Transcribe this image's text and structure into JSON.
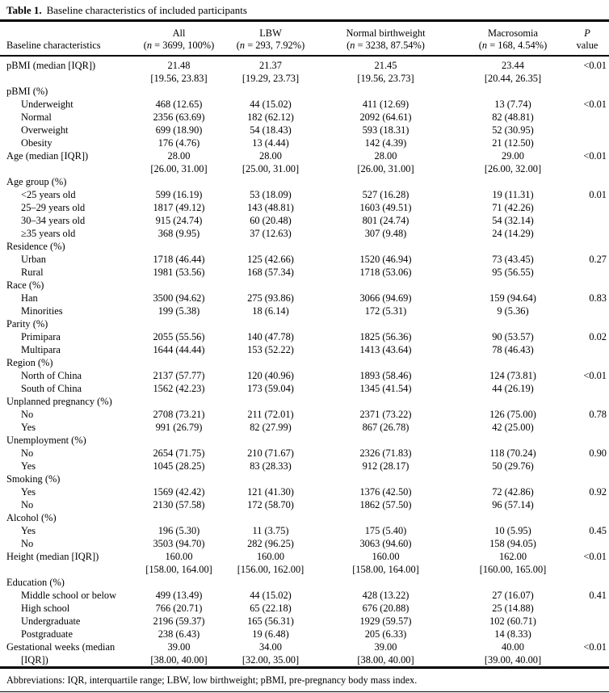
{
  "table": {
    "title_label": "Table 1.",
    "title_text": "Baseline characteristics of included participants",
    "row_header": "Baseline characteristics",
    "columns": [
      {
        "name": "All",
        "n": "3699",
        "pct": "100%"
      },
      {
        "name": "LBW",
        "n": "293",
        "pct": "7.92%"
      },
      {
        "name": "Normal birthweight",
        "n": "3238",
        "pct": "87.54%"
      },
      {
        "name": "Macrosomia",
        "n": "168",
        "pct": "4.54%"
      }
    ],
    "p_column": {
      "line1": "P",
      "line2": "value"
    },
    "rows": [
      {
        "label": "pBMI (median [IQR])",
        "indent": false,
        "cells": [
          "21.48",
          "21.37",
          "21.45",
          "23.44"
        ],
        "cells2": [
          "[19.56, 23.83]",
          "[19.29, 23.73]",
          "[19.56, 23.73]",
          "[20.44, 26.35]"
        ],
        "p": "<0.01"
      },
      {
        "label": "pBMI (%)",
        "indent": false
      },
      {
        "label": "Underweight",
        "indent": true,
        "cells": [
          "468 (12.65)",
          "44 (15.02)",
          "411 (12.69)",
          "13 (7.74)"
        ],
        "p": "<0.01"
      },
      {
        "label": "Normal",
        "indent": true,
        "cells": [
          "2356 (63.69)",
          "182 (62.12)",
          "2092 (64.61)",
          "82 (48.81)"
        ]
      },
      {
        "label": "Overweight",
        "indent": true,
        "cells": [
          "699 (18.90)",
          "54 (18.43)",
          "593 (18.31)",
          "52 (30.95)"
        ]
      },
      {
        "label": "Obesity",
        "indent": true,
        "cells": [
          "176 (4.76)",
          "13 (4.44)",
          "142 (4.39)",
          "21 (12.50)"
        ]
      },
      {
        "label": "Age (median [IQR])",
        "indent": false,
        "cells": [
          "28.00",
          "28.00",
          "28.00",
          "29.00"
        ],
        "cells2": [
          "[26.00, 31.00]",
          "[25.00, 31.00]",
          "[26.00, 31.00]",
          "[26.00, 32.00]"
        ],
        "p": "<0.01"
      },
      {
        "label": "Age group (%)",
        "indent": false
      },
      {
        "label": "<25 years old",
        "indent": true,
        "cells": [
          "599 (16.19)",
          "53 (18.09)",
          "527 (16.28)",
          "19 (11.31)"
        ],
        "p": "0.01"
      },
      {
        "label": "25–29 years old",
        "indent": true,
        "cells": [
          "1817 (49.12)",
          "143 (48.81)",
          "1603 (49.51)",
          "71 (42.26)"
        ]
      },
      {
        "label": "30–34 years old",
        "indent": true,
        "cells": [
          "915 (24.74)",
          "60 (20.48)",
          "801 (24.74)",
          "54 (32.14)"
        ]
      },
      {
        "label": "≥35 years old",
        "indent": true,
        "cells": [
          "368 (9.95)",
          "37 (12.63)",
          "307 (9.48)",
          "24 (14.29)"
        ]
      },
      {
        "label": "Residence (%)",
        "indent": false
      },
      {
        "label": "Urban",
        "indent": true,
        "cells": [
          "1718 (46.44)",
          "125 (42.66)",
          "1520 (46.94)",
          "73 (43.45)"
        ],
        "p": "0.27"
      },
      {
        "label": "Rural",
        "indent": true,
        "cells": [
          "1981 (53.56)",
          "168 (57.34)",
          "1718 (53.06)",
          "95 (56.55)"
        ]
      },
      {
        "label": "Race (%)",
        "indent": false
      },
      {
        "label": "Han",
        "indent": true,
        "cells": [
          "3500 (94.62)",
          "275 (93.86)",
          "3066 (94.69)",
          "159 (94.64)"
        ],
        "p": "0.83"
      },
      {
        "label": "Minorities",
        "indent": true,
        "cells": [
          "199 (5.38)",
          "18 (6.14)",
          "172 (5.31)",
          "9 (5.36)"
        ]
      },
      {
        "label": "Parity (%)",
        "indent": false
      },
      {
        "label": "Primipara",
        "indent": true,
        "cells": [
          "2055 (55.56)",
          "140 (47.78)",
          "1825 (56.36)",
          "90 (53.57)"
        ],
        "p": "0.02"
      },
      {
        "label": "Multipara",
        "indent": true,
        "cells": [
          "1644 (44.44)",
          "153 (52.22)",
          "1413 (43.64)",
          "78 (46.43)"
        ]
      },
      {
        "label": "Region (%)",
        "indent": false
      },
      {
        "label": "North of China",
        "indent": true,
        "cells": [
          "2137 (57.77)",
          "120 (40.96)",
          "1893 (58.46)",
          "124 (73.81)"
        ],
        "p": "<0.01"
      },
      {
        "label": "South of China",
        "indent": true,
        "cells": [
          "1562 (42.23)",
          "173 (59.04)",
          "1345 (41.54)",
          "44 (26.19)"
        ]
      },
      {
        "label": "Unplanned pregnancy (%)",
        "indent": false
      },
      {
        "label": "No",
        "indent": true,
        "cells": [
          "2708 (73.21)",
          "211 (72.01)",
          "2371 (73.22)",
          "126 (75.00)"
        ],
        "p": "0.78"
      },
      {
        "label": "Yes",
        "indent": true,
        "cells": [
          "991 (26.79)",
          "82 (27.99)",
          "867 (26.78)",
          "42 (25.00)"
        ]
      },
      {
        "label": "Unemployment (%)",
        "indent": false
      },
      {
        "label": "No",
        "indent": true,
        "cells": [
          "2654 (71.75)",
          "210 (71.67)",
          "2326 (71.83)",
          "118 (70.24)"
        ],
        "p": "0.90"
      },
      {
        "label": "Yes",
        "indent": true,
        "cells": [
          "1045 (28.25)",
          "83 (28.33)",
          "912 (28.17)",
          "50 (29.76)"
        ]
      },
      {
        "label": "Smoking (%)",
        "indent": false
      },
      {
        "label": "Yes",
        "indent": true,
        "cells": [
          "1569 (42.42)",
          "121 (41.30)",
          "1376 (42.50)",
          "72 (42.86)"
        ],
        "p": "0.92"
      },
      {
        "label": "No",
        "indent": true,
        "cells": [
          "2130 (57.58)",
          "172 (58.70)",
          "1862 (57.50)",
          "96 (57.14)"
        ]
      },
      {
        "label": "Alcohol (%)",
        "indent": false
      },
      {
        "label": "Yes",
        "indent": true,
        "cells": [
          "196 (5.30)",
          "11 (3.75)",
          "175 (5.40)",
          "10 (5.95)"
        ],
        "p": "0.45"
      },
      {
        "label": "No",
        "indent": true,
        "cells": [
          "3503 (94.70)",
          "282 (96.25)",
          "3063 (94.60)",
          "158 (94.05)"
        ]
      },
      {
        "label": "Height (median [IQR])",
        "indent": false,
        "cells": [
          "160.00",
          "160.00",
          "160.00",
          "162.00"
        ],
        "cells2": [
          "[158.00, 164.00]",
          "[156.00, 162.00]",
          "[158.00, 164.00]",
          "[160.00, 165.00]"
        ],
        "p": "<0.01"
      },
      {
        "label": "Education (%)",
        "indent": false
      },
      {
        "label": "Middle school or below",
        "indent": true,
        "cells": [
          "499 (13.49)",
          "44 (15.02)",
          "428 (13.22)",
          "27 (16.07)"
        ],
        "p": "0.41"
      },
      {
        "label": "High school",
        "indent": true,
        "cells": [
          "766 (20.71)",
          "65 (22.18)",
          "676 (20.88)",
          "25 (14.88)"
        ]
      },
      {
        "label": "Undergraduate",
        "indent": true,
        "cells": [
          "2196 (59.37)",
          "165 (56.31)",
          "1929 (59.57)",
          "102 (60.71)"
        ]
      },
      {
        "label": "Postgraduate",
        "indent": true,
        "cells": [
          "238 (6.43)",
          "19 (6.48)",
          "205 (6.33)",
          "14 (8.33)"
        ]
      },
      {
        "label": "Gestational weeks (median",
        "label2": "[IQR])",
        "indent": false,
        "cells": [
          "39.00",
          "34.00",
          "39.00",
          "40.00"
        ],
        "cells2": [
          "[38.00, 40.00]",
          "[32.00, 35.00]",
          "[38.00, 40.00]",
          "[39.00, 40.00]"
        ],
        "p": "<0.01"
      }
    ],
    "footer": "Abbreviations: IQR, interquartile range; LBW, low birthweight; pBMI, pre-pregnancy body mass index."
  }
}
